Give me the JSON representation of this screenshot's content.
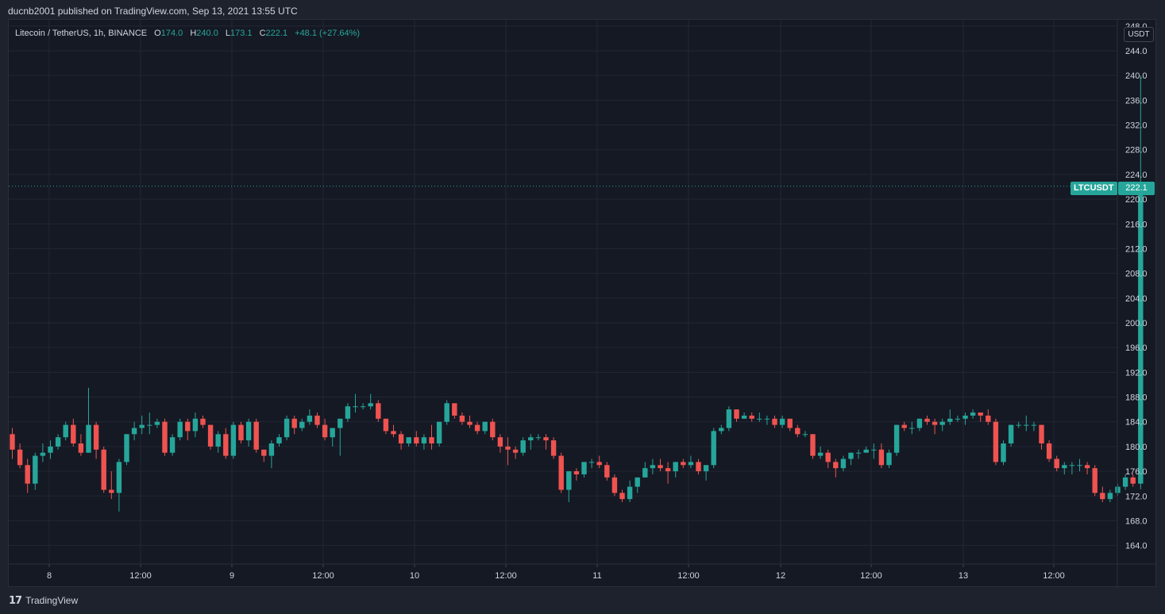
{
  "header": {
    "publisher": "ducnb2001 published on TradingView.com, Sep 13, 2021 13:55 UTC"
  },
  "legend": {
    "symbol": "Litecoin / TetherUS, 1h, BINANCE",
    "open_key": "O",
    "open": "174.0",
    "high_key": "H",
    "high": "240.0",
    "low_key": "L",
    "low": "173.1",
    "close_key": "C",
    "close": "222.1",
    "change": "+48.1 (+27.64%)"
  },
  "price_axis": {
    "unit": "USDT",
    "symbol_label": "LTCUSDT",
    "last_price_label": "222.1"
  },
  "footer": {
    "logo_mark": "17",
    "logo_text": "TradingView"
  },
  "colors": {
    "background": "#151924",
    "up": "#26a69a",
    "down": "#ef5350",
    "grid": "#232733",
    "text": "#d1d4dc"
  },
  "chart_data": {
    "type": "candlestick",
    "interval": "1h",
    "ylim": [
      161,
      249
    ],
    "y_ticks": [
      248,
      244,
      240,
      236,
      232,
      228,
      224,
      220,
      216,
      212,
      208,
      204,
      200,
      196,
      192,
      188,
      184,
      180,
      176,
      172,
      168,
      164
    ],
    "x_ticks": [
      "8",
      "12:00",
      "9",
      "12:00",
      "10",
      "12:00",
      "11",
      "12:00",
      "12",
      "12:00",
      "13",
      "12:00"
    ],
    "last_price": 222.1,
    "candles_hourly": [
      [
        182.0,
        183.0,
        178.0,
        179.5
      ],
      [
        179.5,
        180.5,
        176.5,
        177.0
      ],
      [
        177.0,
        178.0,
        172.5,
        174.0
      ],
      [
        174.0,
        179.0,
        173.0,
        178.5
      ],
      [
        178.5,
        180.5,
        177.5,
        179.0
      ],
      [
        179.0,
        181.0,
        178.0,
        180.0
      ],
      [
        180.0,
        182.0,
        179.5,
        181.5
      ],
      [
        181.5,
        184.0,
        181.0,
        183.5
      ],
      [
        183.5,
        184.5,
        180.0,
        180.5
      ],
      [
        180.5,
        182.0,
        178.5,
        179.0
      ],
      [
        179.0,
        189.5,
        179.0,
        183.5
      ],
      [
        183.5,
        184.0,
        178.0,
        179.5
      ],
      [
        179.5,
        180.0,
        172.5,
        173.0
      ],
      [
        173.0,
        176.0,
        171.5,
        172.5
      ],
      [
        172.5,
        178.0,
        169.5,
        177.5
      ],
      [
        177.5,
        182.0,
        177.0,
        182.0
      ],
      [
        182.0,
        184.0,
        181.0,
        183.0
      ],
      [
        183.0,
        185.0,
        182.0,
        183.5
      ],
      [
        183.5,
        185.5,
        182.0,
        183.5
      ],
      [
        183.5,
        184.5,
        183.0,
        184.0
      ],
      [
        184.0,
        184.5,
        178.5,
        179.0
      ],
      [
        179.0,
        182.0,
        178.5,
        181.5
      ],
      [
        181.5,
        184.5,
        181.0,
        184.0
      ],
      [
        184.0,
        184.5,
        181.0,
        182.5
      ],
      [
        182.5,
        185.5,
        181.5,
        184.5
      ],
      [
        184.5,
        185.0,
        183.0,
        183.5
      ],
      [
        183.5,
        183.5,
        179.5,
        180.0
      ],
      [
        180.0,
        182.5,
        179.0,
        182.0
      ],
      [
        182.0,
        183.0,
        178.0,
        178.5
      ],
      [
        178.5,
        184.0,
        178.0,
        183.5
      ],
      [
        183.5,
        184.0,
        180.5,
        181.0
      ],
      [
        181.0,
        184.5,
        180.0,
        184.0
      ],
      [
        184.0,
        184.5,
        179.0,
        179.5
      ],
      [
        179.5,
        179.5,
        177.5,
        178.5
      ],
      [
        178.5,
        181.0,
        176.5,
        180.5
      ],
      [
        180.5,
        182.0,
        180.0,
        181.5
      ],
      [
        181.5,
        185.0,
        181.0,
        184.5
      ],
      [
        184.5,
        185.0,
        182.0,
        183.0
      ],
      [
        183.0,
        184.5,
        182.5,
        184.0
      ],
      [
        184.0,
        186.0,
        183.5,
        185.0
      ],
      [
        185.0,
        185.5,
        183.0,
        183.5
      ],
      [
        183.5,
        184.5,
        181.0,
        181.5
      ],
      [
        181.5,
        183.0,
        180.0,
        183.0
      ],
      [
        183.0,
        183.5,
        178.5,
        184.5
      ],
      [
        184.5,
        187.0,
        184.0,
        186.5
      ],
      [
        186.5,
        188.5,
        185.5,
        186.5
      ],
      [
        186.5,
        187.0,
        186.0,
        186.5
      ],
      [
        186.5,
        188.5,
        186.0,
        187.0
      ],
      [
        187.0,
        187.5,
        184.0,
        184.5
      ],
      [
        184.5,
        184.5,
        182.0,
        182.5
      ],
      [
        182.5,
        183.5,
        181.5,
        182.0
      ],
      [
        182.0,
        182.5,
        179.5,
        180.5
      ],
      [
        180.5,
        181.5,
        180.0,
        181.5
      ],
      [
        181.5,
        182.5,
        180.0,
        180.5
      ],
      [
        180.5,
        182.0,
        179.5,
        181.5
      ],
      [
        181.5,
        183.5,
        179.5,
        180.5
      ],
      [
        180.5,
        184.0,
        180.0,
        184.0
      ],
      [
        184.0,
        187.5,
        183.5,
        187.0
      ],
      [
        187.0,
        187.0,
        184.5,
        185.0
      ],
      [
        185.0,
        185.5,
        183.5,
        184.0
      ],
      [
        184.0,
        185.0,
        183.0,
        183.5
      ],
      [
        183.5,
        184.0,
        182.0,
        182.5
      ],
      [
        182.5,
        184.0,
        182.0,
        184.0
      ],
      [
        184.0,
        184.5,
        181.0,
        181.5
      ],
      [
        181.5,
        182.0,
        179.0,
        180.0
      ],
      [
        180.0,
        181.5,
        177.0,
        179.5
      ],
      [
        179.5,
        180.0,
        178.0,
        179.0
      ],
      [
        179.0,
        181.5,
        178.5,
        181.0
      ],
      [
        181.0,
        182.0,
        179.5,
        181.5
      ],
      [
        181.5,
        182.0,
        181.0,
        181.5
      ],
      [
        181.5,
        182.0,
        179.5,
        181.0
      ],
      [
        181.0,
        181.5,
        178.0,
        178.5
      ],
      [
        178.5,
        179.0,
        172.5,
        173.0
      ],
      [
        173.0,
        176.0,
        171.0,
        176.0
      ],
      [
        176.0,
        176.5,
        174.5,
        175.5
      ],
      [
        175.5,
        177.5,
        175.0,
        177.5
      ],
      [
        177.5,
        178.0,
        176.5,
        177.5
      ],
      [
        177.5,
        178.5,
        176.5,
        177.0
      ],
      [
        177.0,
        177.5,
        174.5,
        175.0
      ],
      [
        175.0,
        175.5,
        172.0,
        172.5
      ],
      [
        172.5,
        173.0,
        171.0,
        171.5
      ],
      [
        171.5,
        174.5,
        171.0,
        173.5
      ],
      [
        173.5,
        175.0,
        172.5,
        175.0
      ],
      [
        175.0,
        177.5,
        175.0,
        176.5
      ],
      [
        176.5,
        178.0,
        175.5,
        177.0
      ],
      [
        177.0,
        178.0,
        176.0,
        176.5
      ],
      [
        176.5,
        177.5,
        174.0,
        176.0
      ],
      [
        176.0,
        177.5,
        175.0,
        177.5
      ],
      [
        177.5,
        178.0,
        176.5,
        177.0
      ],
      [
        177.0,
        178.5,
        176.5,
        177.5
      ],
      [
        177.5,
        178.0,
        175.5,
        176.0
      ],
      [
        176.0,
        177.0,
        174.5,
        177.0
      ],
      [
        177.0,
        183.0,
        176.5,
        182.5
      ],
      [
        182.5,
        183.5,
        182.0,
        183.0
      ],
      [
        183.0,
        186.5,
        182.5,
        186.0
      ],
      [
        186.0,
        186.0,
        184.0,
        184.5
      ],
      [
        184.5,
        185.5,
        184.5,
        185.0
      ],
      [
        185.0,
        185.5,
        184.0,
        184.5
      ],
      [
        184.5,
        185.5,
        184.0,
        184.5
      ],
      [
        184.5,
        185.0,
        183.5,
        184.5
      ],
      [
        184.5,
        185.0,
        183.0,
        183.5
      ],
      [
        183.5,
        185.0,
        183.0,
        184.5
      ],
      [
        184.5,
        184.5,
        182.5,
        183.0
      ],
      [
        183.0,
        183.5,
        181.5,
        182.0
      ],
      [
        182.0,
        182.5,
        181.5,
        182.0
      ],
      [
        182.0,
        182.0,
        178.0,
        178.5
      ],
      [
        178.5,
        180.0,
        178.0,
        179.0
      ],
      [
        179.0,
        179.5,
        176.5,
        177.5
      ],
      [
        177.5,
        178.0,
        175.0,
        176.5
      ],
      [
        176.5,
        178.5,
        176.0,
        178.0
      ],
      [
        178.0,
        179.0,
        177.0,
        179.0
      ],
      [
        179.0,
        179.5,
        178.0,
        179.0
      ],
      [
        179.0,
        180.0,
        179.0,
        179.5
      ],
      [
        179.5,
        180.5,
        178.0,
        179.5
      ],
      [
        179.5,
        180.5,
        176.5,
        177.0
      ],
      [
        177.0,
        179.5,
        176.5,
        179.0
      ],
      [
        179.0,
        183.5,
        178.5,
        183.5
      ],
      [
        183.5,
        184.0,
        182.5,
        183.0
      ],
      [
        183.0,
        184.0,
        182.0,
        183.0
      ],
      [
        183.0,
        184.5,
        182.5,
        184.5
      ],
      [
        184.5,
        185.0,
        183.5,
        184.0
      ],
      [
        184.0,
        184.5,
        182.0,
        183.5
      ],
      [
        183.5,
        184.5,
        182.5,
        184.0
      ],
      [
        184.0,
        186.0,
        183.5,
        184.5
      ],
      [
        184.5,
        185.0,
        184.0,
        184.5
      ],
      [
        184.5,
        185.5,
        183.5,
        185.0
      ],
      [
        185.0,
        186.0,
        184.5,
        185.5
      ],
      [
        185.5,
        185.5,
        184.0,
        185.0
      ],
      [
        185.0,
        186.0,
        183.5,
        184.0
      ],
      [
        184.0,
        184.5,
        177.0,
        177.5
      ],
      [
        177.5,
        181.0,
        177.0,
        180.5
      ],
      [
        180.5,
        183.5,
        180.0,
        183.5
      ],
      [
        183.5,
        184.0,
        183.0,
        183.5
      ],
      [
        183.5,
        185.0,
        182.5,
        183.5
      ],
      [
        183.5,
        184.0,
        182.5,
        183.5
      ],
      [
        183.5,
        183.5,
        179.5,
        180.5
      ],
      [
        180.5,
        181.0,
        177.5,
        178.0
      ],
      [
        178.0,
        178.5,
        176.0,
        176.5
      ],
      [
        176.5,
        177.5,
        175.5,
        177.0
      ],
      [
        177.0,
        177.5,
        175.5,
        177.0
      ],
      [
        177.0,
        178.0,
        176.0,
        177.0
      ],
      [
        177.0,
        177.5,
        175.5,
        176.5
      ],
      [
        176.5,
        177.0,
        172.0,
        172.5
      ],
      [
        172.5,
        173.5,
        171.0,
        171.5
      ],
      [
        171.5,
        173.0,
        171.0,
        172.5
      ],
      [
        172.5,
        174.0,
        172.0,
        173.5
      ],
      [
        173.5,
        175.5,
        173.0,
        175.0
      ],
      [
        175.0,
        175.5,
        173.5,
        174.0
      ],
      [
        174.0,
        240.0,
        173.1,
        222.1
      ]
    ]
  }
}
